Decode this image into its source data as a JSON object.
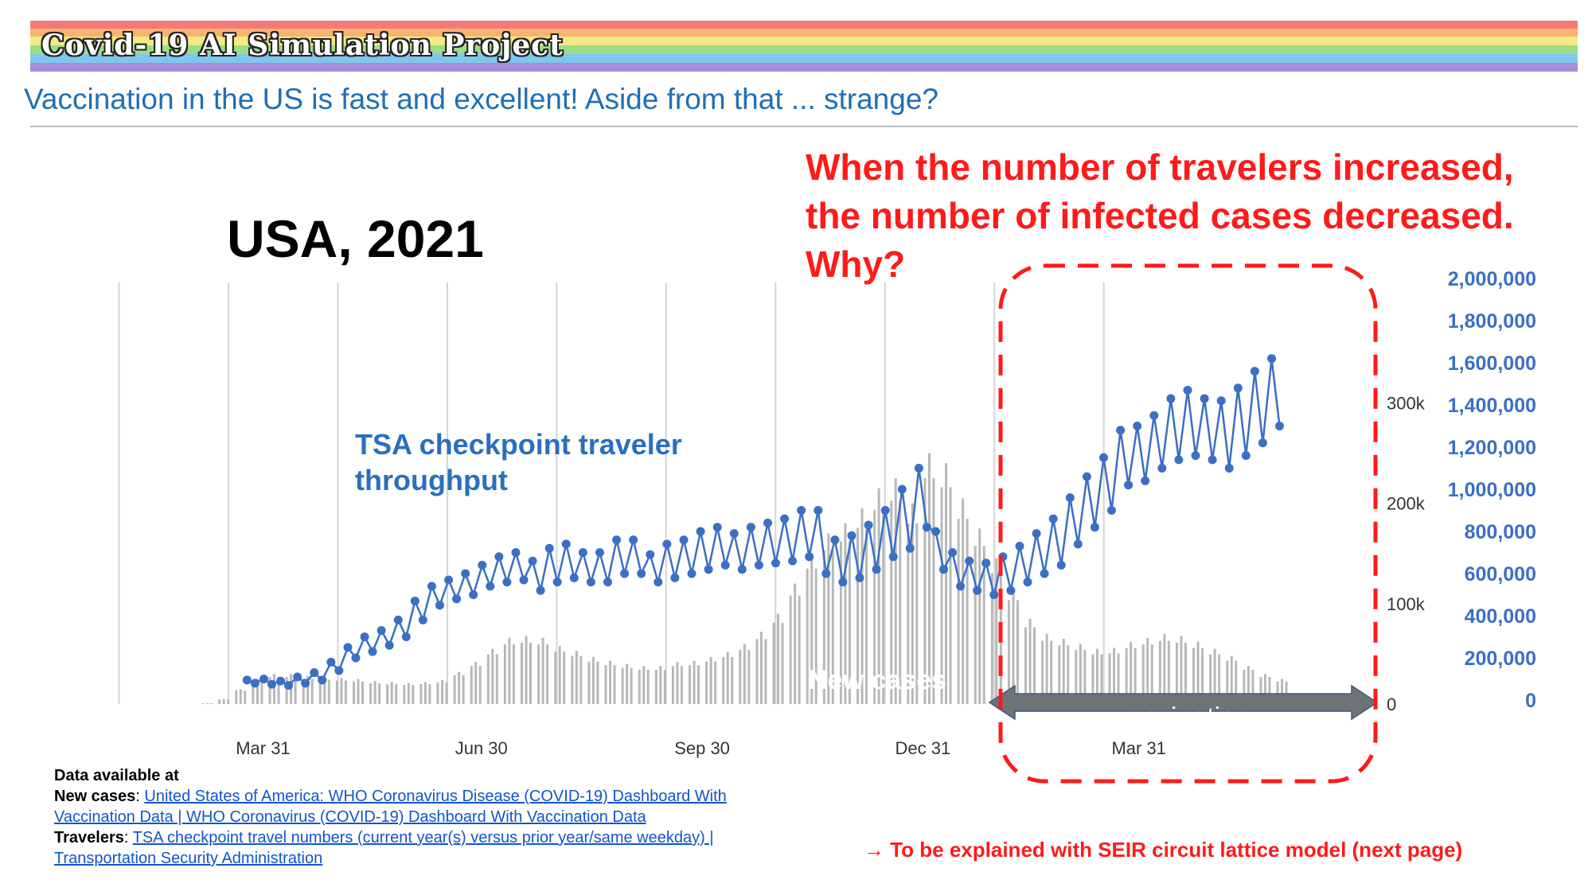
{
  "banner": {
    "title": "Covid-19 AI Simulation Project"
  },
  "subtitle": "Vaccination in the US is fast and excellent! Aside from that ... strange?",
  "country_label": "USA, 2021",
  "question": {
    "line1": "When the number of travelers increased,",
    "line2": "the number of infected cases decreased.",
    "line3": "Why?"
  },
  "tsa_label": {
    "line1": "TSA checkpoint traveler",
    "line2": "throughput"
  },
  "new_cases_label": "New cases",
  "vaccination_label": "vaccination",
  "footer": {
    "heading": "Data available at",
    "new_cases_prefix": "New cases",
    "new_cases_link_line1": "United States of America: WHO Coronavirus Disease (COVID-19) Dashboard With",
    "new_cases_link_line2": "Vaccination Data | WHO Coronavirus (COVID-19) Dashboard With Vaccination Data",
    "travelers_prefix": "Travelers",
    "travelers_link_line1": "TSA checkpoint travel numbers (current year(s) versus prior year/same weekday) |",
    "travelers_link_line2": "Transportation Security Administration",
    "separator": ": "
  },
  "explain_note": "→ To be explained with SEIR circuit lattice model (next page)",
  "colors": {
    "travelers": "#3a6fc4",
    "cases": "#b8b8b8",
    "highlight": "#ff1a1a",
    "arrow": "#6e7378",
    "title_blue": "#1f6fb5"
  },
  "chart_data": {
    "type": "line",
    "x_tick_labels": [
      "Mar 31",
      "Jun 30",
      "Sep 30",
      "Dec 31",
      "Mar 31"
    ],
    "x_tick_dates": [
      "2020-03-31",
      "2020-06-30",
      "2020-09-30",
      "2020-12-31",
      "2021-03-31"
    ],
    "x_range": [
      "2020-03-01",
      "2021-06-30"
    ],
    "grid": "vertical",
    "y_left": {
      "tick_labels": [
        "0",
        "100k",
        "200k",
        "300k"
      ],
      "ticks": [
        0,
        100000,
        200000,
        300000
      ],
      "range": [
        0,
        420000
      ]
    },
    "y_right": {
      "tick_labels": [
        "0",
        "200,000",
        "400,000",
        "600,000",
        "800,000",
        "1,000,000",
        "1,200,000",
        "1,400,000",
        "1,600,000",
        "1,800,000",
        "2,000,000"
      ],
      "ticks": [
        0,
        200000,
        400000,
        600000,
        800000,
        1000000,
        1200000,
        1400000,
        1600000,
        1800000,
        2000000
      ],
      "range": [
        0,
        2000000
      ]
    },
    "series": [
      {
        "name": "TSA checkpoint traveler throughput",
        "axis": "right",
        "kind": "line-markers",
        "x": [
          "2020-03-26",
          "2020-04-02",
          "2020-04-09",
          "2020-04-16",
          "2020-04-23",
          "2020-04-30",
          "2020-05-07",
          "2020-05-14",
          "2020-05-21",
          "2020-05-28",
          "2020-06-04",
          "2020-06-11",
          "2020-06-18",
          "2020-06-25",
          "2020-07-02",
          "2020-07-09",
          "2020-07-16",
          "2020-07-23",
          "2020-07-30",
          "2020-08-06",
          "2020-08-13",
          "2020-08-20",
          "2020-08-27",
          "2020-09-03",
          "2020-09-10",
          "2020-09-17",
          "2020-09-24",
          "2020-10-01",
          "2020-10-08",
          "2020-10-15",
          "2020-10-22",
          "2020-10-29",
          "2020-11-05",
          "2020-11-12",
          "2020-11-19",
          "2020-11-26",
          "2020-12-03",
          "2020-12-10",
          "2020-12-17",
          "2020-12-24",
          "2020-12-31",
          "2021-01-07",
          "2021-01-14",
          "2021-01-21",
          "2021-01-28",
          "2021-02-04",
          "2021-02-11",
          "2021-02-18",
          "2021-02-25",
          "2021-03-04",
          "2021-03-11",
          "2021-03-18",
          "2021-03-25",
          "2021-04-01",
          "2021-04-08",
          "2021-04-15",
          "2021-04-22",
          "2021-04-29",
          "2021-05-06",
          "2021-05-13",
          "2021-05-20",
          "2021-05-27"
        ],
        "values": [
          95000,
          100000,
          90000,
          110000,
          130000,
          180000,
          250000,
          300000,
          330000,
          380000,
          470000,
          540000,
          570000,
          600000,
          640000,
          680000,
          700000,
          660000,
          720000,
          740000,
          700000,
          700000,
          760000,
          760000,
          690000,
          740000,
          760000,
          800000,
          820000,
          790000,
          820000,
          840000,
          860000,
          900000,
          900000,
          760000,
          780000,
          830000,
          900000,
          1000000,
          1100000,
          800000,
          700000,
          660000,
          650000,
          680000,
          730000,
          790000,
          860000,
          960000,
          1060000,
          1150000,
          1280000,
          1300000,
          1350000,
          1430000,
          1470000,
          1430000,
          1420000,
          1480000,
          1560000,
          1620000
        ],
        "low_day_values": [
          80000,
          75000,
          70000,
          80000,
          95000,
          140000,
          200000,
          230000,
          260000,
          300000,
          380000,
          450000,
          480000,
          500000,
          540000,
          560000,
          570000,
          520000,
          560000,
          580000,
          560000,
          560000,
          600000,
          600000,
          560000,
          580000,
          600000,
          620000,
          640000,
          620000,
          640000,
          650000,
          660000,
          680000,
          600000,
          560000,
          580000,
          620000,
          680000,
          720000,
          820000,
          620000,
          540000,
          520000,
          500000,
          520000,
          560000,
          600000,
          640000,
          740000,
          820000,
          900000,
          1020000,
          1040000,
          1100000,
          1140000,
          1160000,
          1140000,
          1100000,
          1160000,
          1220000,
          1300000
        ]
      },
      {
        "name": "New cases",
        "axis": "left",
        "kind": "bars",
        "x": [
          "2020-03-08",
          "2020-03-15",
          "2020-03-22",
          "2020-03-29",
          "2020-04-05",
          "2020-04-12",
          "2020-04-19",
          "2020-04-26",
          "2020-05-03",
          "2020-05-10",
          "2020-05-17",
          "2020-05-24",
          "2020-05-31",
          "2020-06-07",
          "2020-06-14",
          "2020-06-21",
          "2020-06-28",
          "2020-07-05",
          "2020-07-12",
          "2020-07-19",
          "2020-07-26",
          "2020-08-02",
          "2020-08-09",
          "2020-08-16",
          "2020-08-23",
          "2020-08-30",
          "2020-09-06",
          "2020-09-13",
          "2020-09-20",
          "2020-09-27",
          "2020-10-04",
          "2020-10-11",
          "2020-10-18",
          "2020-10-25",
          "2020-11-01",
          "2020-11-08",
          "2020-11-15",
          "2020-11-22",
          "2020-11-29",
          "2020-12-06",
          "2020-12-13",
          "2020-12-20",
          "2020-12-27",
          "2021-01-03",
          "2021-01-10",
          "2021-01-17",
          "2021-01-24",
          "2021-01-31",
          "2021-02-07",
          "2021-02-14",
          "2021-02-21",
          "2021-02-28",
          "2021-03-07",
          "2021-03-14",
          "2021-03-21",
          "2021-03-28",
          "2021-04-04",
          "2021-04-11",
          "2021-04-18",
          "2021-04-25",
          "2021-05-02",
          "2021-05-09",
          "2021-05-16",
          "2021-05-23",
          "2021-05-30"
        ],
        "values": [
          1000,
          5000,
          15000,
          25000,
          30000,
          30000,
          28000,
          27000,
          26000,
          25000,
          23000,
          22000,
          21000,
          22000,
          24000,
          32000,
          42000,
          55000,
          66000,
          68000,
          66000,
          58000,
          53000,
          47000,
          43000,
          40000,
          38000,
          38000,
          42000,
          43000,
          47000,
          52000,
          60000,
          72000,
          90000,
          120000,
          150000,
          170000,
          180000,
          195000,
          215000,
          225000,
          200000,
          250000,
          240000,
          205000,
          175000,
          145000,
          115000,
          85000,
          70000,
          65000,
          60000,
          55000,
          56000,
          62000,
          66000,
          70000,
          68000,
          62000,
          55000,
          48000,
          38000,
          30000,
          25000
        ]
      }
    ],
    "annotations": [
      "New cases",
      "vaccination"
    ]
  }
}
